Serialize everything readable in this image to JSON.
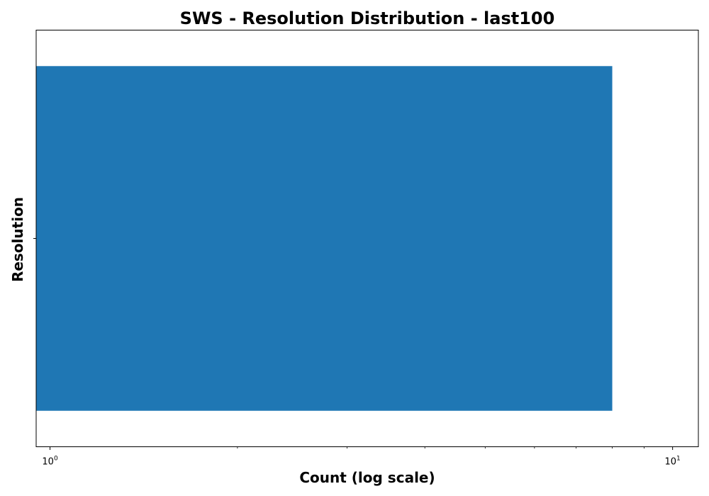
{
  "chart_data": {
    "type": "bar",
    "orientation": "horizontal",
    "title": "SWS - Resolution Distribution - last100",
    "xlabel": "Count (log scale)",
    "ylabel": "Resolution",
    "x_scale": "log",
    "xlim": [
      0.95,
      11
    ],
    "x_ticks": [
      {
        "value": 1,
        "base": "10",
        "exp": "0"
      },
      {
        "value": 10,
        "base": "10",
        "exp": "1"
      }
    ],
    "categories": [
      ""
    ],
    "values": [
      8
    ],
    "grid": false,
    "legend": "none",
    "colors": {
      "bar": "#1f77b4",
      "axis": "#000000"
    }
  }
}
